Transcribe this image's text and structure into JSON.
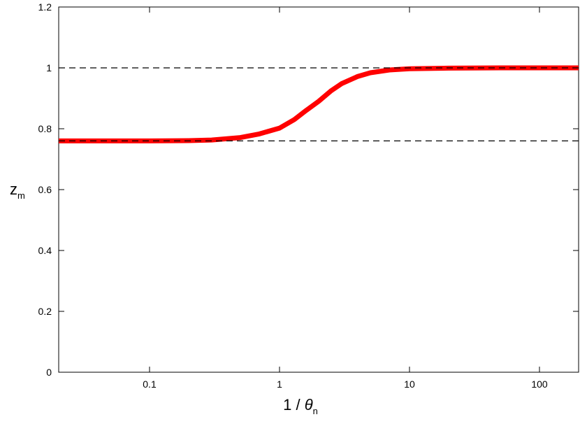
{
  "chart_data": {
    "type": "line",
    "xlabel": "1 / ",
    "xlabel_symbol": "θ",
    "xlabel_sub": "n",
    "ylabel": "z",
    "ylabel_sub": "m",
    "x": [
      0.02,
      0.05,
      0.1,
      0.2,
      0.3,
      0.5,
      0.7,
      1,
      1.3,
      1.6,
      2,
      2.5,
      3,
      4,
      5,
      7,
      10,
      20,
      50,
      100,
      200
    ],
    "series": [
      {
        "color": "#ff0000",
        "values": [
          0.76,
          0.76,
          0.76,
          0.761,
          0.763,
          0.771,
          0.783,
          0.802,
          0.83,
          0.86,
          0.89,
          0.925,
          0.948,
          0.972,
          0.984,
          0.993,
          0.997,
          0.999,
          1,
          1,
          1
        ]
      }
    ],
    "hlines": [
      1,
      0.76
    ],
    "xlim": [
      0.02,
      200
    ],
    "ylim": [
      0,
      1.2
    ],
    "xticks": [
      0.1,
      1,
      10,
      100
    ],
    "yticks": [
      0,
      0.2,
      0.4,
      0.6,
      0.8,
      1,
      1.2
    ],
    "xscale": "log"
  }
}
